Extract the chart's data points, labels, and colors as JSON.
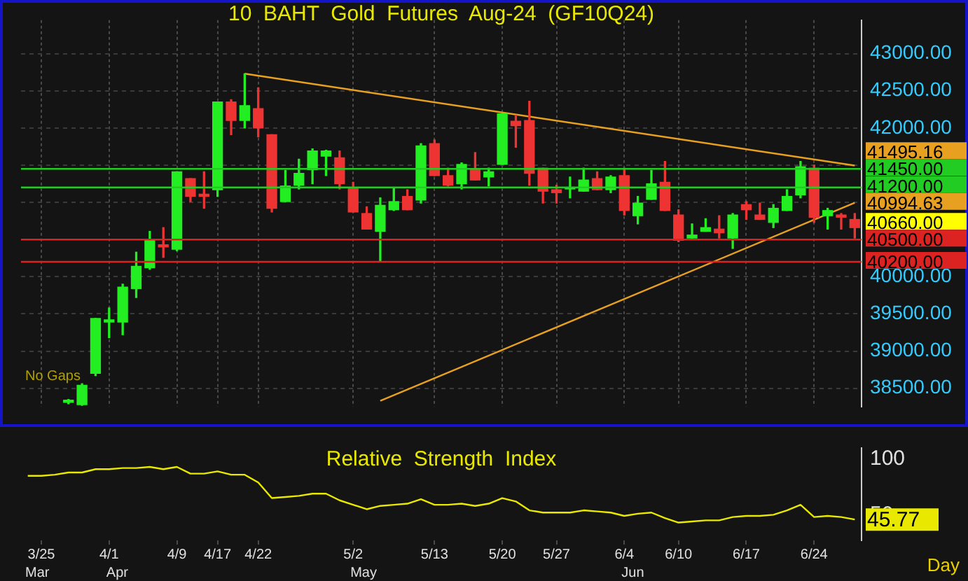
{
  "chart_data": [
    {
      "type": "candlestick",
      "title": "10  BAHT  Gold  Futures  Aug-24  (GF10Q24)",
      "categories": [
        null,
        null,
        null,
        null,
        null,
        null,
        null,
        null,
        null,
        null,
        null,
        null,
        null,
        null,
        null,
        null,
        null,
        null,
        null,
        null,
        null,
        null,
        null,
        null,
        null,
        null,
        null,
        null,
        null,
        null,
        null,
        null,
        null,
        null,
        null,
        null,
        null,
        null,
        null,
        null,
        null,
        null,
        null,
        null,
        null,
        null,
        null,
        null,
        null,
        null,
        null,
        null,
        null,
        null,
        null,
        null,
        null,
        null,
        null,
        null,
        null,
        null
      ],
      "ohlc": [
        null,
        null,
        null,
        [
          38310,
          38350,
          38290,
          38340
        ],
        [
          38280,
          38560,
          38270,
          38540
        ],
        [
          38700,
          39440,
          38670,
          39440
        ],
        [
          39390,
          39580,
          39180,
          39420
        ],
        [
          39390,
          39900,
          39220,
          39860
        ],
        [
          39840,
          40330,
          39720,
          40140
        ],
        [
          40120,
          40610,
          40100,
          40490
        ],
        [
          40430,
          40660,
          40260,
          40400
        ],
        [
          40370,
          41410,
          40350,
          41410
        ],
        [
          41320,
          41320,
          41010,
          41080
        ],
        [
          41110,
          41410,
          40920,
          41080
        ],
        [
          41170,
          42350,
          41080,
          42350
        ],
        [
          42350,
          42380,
          41910,
          42100
        ],
        [
          42100,
          42730,
          42000,
          42300
        ],
        [
          42260,
          42540,
          41880,
          42000
        ],
        [
          41910,
          41910,
          40870,
          40920
        ],
        [
          41010,
          41430,
          41010,
          41220
        ],
        [
          41230,
          41580,
          41180,
          41390
        ],
        [
          41440,
          41720,
          41250,
          41690
        ],
        [
          41620,
          41700,
          41360,
          41690
        ],
        [
          41600,
          41690,
          41180,
          41250
        ],
        [
          41200,
          41270,
          40870,
          40870
        ],
        [
          40850,
          40940,
          40640,
          40640
        ],
        [
          40610,
          41060,
          40210,
          40960
        ],
        [
          40900,
          41200,
          40890,
          41010
        ],
        [
          41080,
          41170,
          40900,
          40900
        ],
        [
          41030,
          41790,
          40990,
          41760
        ],
        [
          41790,
          41840,
          41360,
          41360
        ],
        [
          41360,
          41460,
          41220,
          41230
        ],
        [
          41250,
          41530,
          41180,
          41510
        ],
        [
          41440,
          41670,
          41300,
          41300
        ],
        [
          41340,
          41460,
          41220,
          41410
        ],
        [
          41510,
          42190,
          41510,
          42190
        ],
        [
          42090,
          42170,
          41740,
          42030
        ],
        [
          42100,
          42360,
          41230,
          41390
        ],
        [
          41460,
          41460,
          40990,
          41150
        ],
        [
          41170,
          41230,
          40990,
          41130
        ],
        [
          41180,
          41340,
          41060,
          41190
        ],
        [
          41150,
          41460,
          41150,
          41300
        ],
        [
          41320,
          41410,
          41170,
          41170
        ],
        [
          41170,
          41360,
          41130,
          41340
        ],
        [
          41360,
          41460,
          40830,
          40890
        ],
        [
          40820,
          41080,
          40710,
          40990
        ],
        [
          41040,
          41430,
          41040,
          41250
        ],
        [
          41270,
          41550,
          40890,
          40890
        ],
        [
          40830,
          40900,
          40470,
          40490
        ],
        [
          40520,
          40710,
          40520,
          40560
        ],
        [
          40610,
          40780,
          40610,
          40660
        ],
        [
          40640,
          40820,
          40520,
          40590
        ],
        [
          40520,
          40850,
          40380,
          40830
        ],
        [
          40970,
          41010,
          40770,
          40900
        ],
        [
          40830,
          40990,
          40770,
          40770
        ],
        [
          40730,
          40970,
          40660,
          40920
        ],
        [
          40890,
          41170,
          40890,
          41080
        ],
        [
          41100,
          41550,
          41060,
          41480
        ],
        [
          41460,
          41500,
          40730,
          40800
        ],
        [
          40820,
          40920,
          40640,
          40890
        ],
        [
          40830,
          40850,
          40640,
          40800
        ],
        [
          40770,
          40850,
          40520,
          40660
        ]
      ],
      "colors": [
        null,
        null,
        null,
        "#22ee22",
        "#22ee22",
        "#22ee22",
        "#22ee22",
        "#22ee22",
        "#22ee22",
        "#22ee22",
        "#ee3333",
        "#22ee22",
        "#ee3333",
        "#ee3333",
        "#22ee22",
        "#ee3333",
        "#22ee22",
        "#ee3333",
        "#ee3333",
        "#22ee22",
        "#22ee22",
        "#22ee22",
        "#22ee22",
        "#ee3333",
        "#ee3333",
        "#ee3333",
        "#22ee22",
        "#22ee22",
        "#ee3333",
        "#22ee22",
        "#ee3333",
        "#ee3333",
        "#22ee22",
        "#ee3333",
        "#22ee22",
        "#22ee22",
        "#ee3333",
        "#ee3333",
        "#ee3333",
        "#ee3333",
        "#22ee22",
        "#22ee22",
        "#ee3333",
        "#22ee22",
        "#ee3333",
        "#22ee22",
        "#22ee22",
        "#ee3333",
        "#ee3333",
        "#22ee22",
        "#22ee22",
        "#ee3333",
        "#22ee22",
        "#ee3333",
        "#ee3333",
        "#22ee22",
        "#22ee22",
        "#22ee22",
        "#ee3333",
        "#22ee22",
        "#ee3333",
        "#ee3333"
      ],
      "series": [
        {
          "type": "line",
          "color": "#e8a020",
          "values": [
            null,
            null,
            null,
            null,
            null,
            null,
            null,
            null,
            null,
            null,
            null,
            null,
            null,
            null,
            null,
            null,
            42730,
            null,
            null,
            null,
            null,
            null,
            null,
            null,
            null,
            null,
            null,
            null,
            null,
            null,
            null,
            null,
            null,
            null,
            null,
            null,
            null,
            null,
            null,
            null,
            null,
            null,
            null,
            null,
            null,
            null,
            null,
            null,
            null,
            null,
            null,
            null,
            null,
            null,
            null,
            null,
            null,
            null,
            null,
            null,
            null,
            41495.16
          ],
          "value_labels": [
            null,
            null,
            null,
            null,
            null,
            null,
            null,
            null,
            null,
            null,
            null,
            null,
            null,
            null,
            null,
            null,
            null,
            null,
            null,
            null,
            null,
            null,
            null,
            null,
            null,
            null,
            null,
            null,
            null,
            null,
            null,
            null,
            null,
            null,
            null,
            null,
            null,
            null,
            null,
            null,
            null,
            null,
            null,
            null,
            null,
            null,
            null,
            null,
            null,
            null,
            null,
            null,
            null,
            null,
            null,
            null,
            null,
            null,
            null,
            null,
            null,
            "41495.16"
          ]
        },
        {
          "type": "line",
          "color": "#e8a020",
          "values": [
            null,
            null,
            null,
            null,
            null,
            null,
            null,
            null,
            null,
            null,
            null,
            null,
            null,
            null,
            null,
            null,
            null,
            null,
            null,
            null,
            null,
            null,
            null,
            null,
            null,
            null,
            38330,
            null,
            null,
            null,
            null,
            null,
            null,
            null,
            null,
            null,
            null,
            null,
            null,
            null,
            null,
            null,
            null,
            null,
            null,
            null,
            null,
            null,
            null,
            null,
            null,
            null,
            null,
            null,
            null,
            null,
            null,
            null,
            null,
            null,
            null,
            40994.63
          ],
          "value_labels": [
            null,
            null,
            null,
            null,
            null,
            null,
            null,
            null,
            null,
            null,
            null,
            null,
            null,
            null,
            null,
            null,
            null,
            null,
            null,
            null,
            null,
            null,
            null,
            null,
            null,
            null,
            null,
            null,
            null,
            null,
            null,
            null,
            null,
            null,
            null,
            null,
            null,
            null,
            null,
            null,
            null,
            null,
            null,
            null,
            null,
            null,
            null,
            null,
            null,
            null,
            null,
            null,
            null,
            null,
            null,
            null,
            null,
            null,
            null,
            null,
            null,
            "40994.63"
          ]
        }
      ],
      "ylim": [
        38250,
        43450
      ],
      "yticks": [
        {
          "value": 38500,
          "label": "38500.00"
        },
        {
          "value": 39000,
          "label": "39000.00"
        },
        {
          "value": 39500,
          "label": "39500.00"
        },
        {
          "value": 40000,
          "label": "40000.00"
        },
        {
          "value": 40500,
          "label": null
        },
        {
          "value": 41000,
          "label": null
        },
        {
          "value": 41500,
          "label": null
        },
        {
          "value": 42000,
          "label": "42000.00"
        },
        {
          "value": 42500,
          "label": "42500.00"
        },
        {
          "value": 43000,
          "label": "43000.00"
        }
      ],
      "tick_labels": "y",
      "grid": true,
      "legend": "right",
      "ref_lines": [
        {
          "axis": "y",
          "value": 41450,
          "label": "41450.00",
          "color": "#22cc22"
        },
        {
          "axis": "y",
          "value": 41200,
          "label": "41200.00",
          "color": "#22cc22"
        },
        {
          "axis": "y",
          "value": 40500,
          "label": "40500.00",
          "color": "#dd2222"
        },
        {
          "axis": "y",
          "value": 40200,
          "label": "40200.00",
          "color": "#dd2222"
        }
      ],
      "annotations": [
        "No Gaps",
        "40660.00"
      ]
    },
    {
      "type": "line",
      "title": "Relative  Strength  Index",
      "categories": [
        null,
        "3/25",
        null,
        null,
        null,
        null,
        "4/1",
        null,
        null,
        null,
        null,
        "4/9",
        null,
        null,
        "4/17",
        null,
        null,
        "4/22",
        null,
        null,
        null,
        null,
        null,
        null,
        "5/2",
        null,
        null,
        null,
        null,
        null,
        "5/13",
        null,
        null,
        null,
        null,
        "5/20",
        null,
        null,
        null,
        "5/27",
        null,
        null,
        null,
        null,
        "6/4",
        null,
        null,
        null,
        "6/10",
        null,
        null,
        null,
        null,
        "6/17",
        null,
        null,
        null,
        null,
        "6/24",
        null,
        null,
        null
      ],
      "series": [
        {
          "color": "#e8e800",
          "values": [
            85,
            85,
            86,
            88,
            88,
            91,
            91,
            92,
            92,
            93,
            91,
            93,
            87,
            87,
            89,
            86,
            86,
            79,
            65,
            66,
            67,
            69,
            69,
            63,
            59,
            55,
            58,
            59,
            60,
            64,
            59,
            59,
            60,
            58,
            60,
            65,
            62,
            54,
            52,
            52,
            52,
            54,
            53,
            52,
            49,
            51,
            52,
            47,
            43,
            44,
            45,
            45,
            48,
            49,
            49,
            50,
            54,
            59,
            48,
            49,
            48,
            45.77
          ],
          "value_labels": [
            null,
            null,
            null,
            null,
            null,
            null,
            null,
            null,
            null,
            null,
            null,
            null,
            null,
            null,
            null,
            null,
            null,
            null,
            null,
            null,
            null,
            null,
            null,
            null,
            null,
            null,
            null,
            null,
            null,
            null,
            null,
            null,
            null,
            null,
            null,
            null,
            null,
            null,
            null,
            null,
            null,
            null,
            null,
            null,
            null,
            null,
            null,
            null,
            null,
            null,
            null,
            null,
            null,
            null,
            null,
            null,
            null,
            null,
            null,
            null,
            null,
            "45.77"
          ]
        }
      ],
      "ylim": [
        27,
        110
      ],
      "yticks": [
        50,
        100
      ],
      "annotations": [
        "Mar",
        "Apr",
        "May",
        "Jun",
        "Day"
      ]
    }
  ]
}
